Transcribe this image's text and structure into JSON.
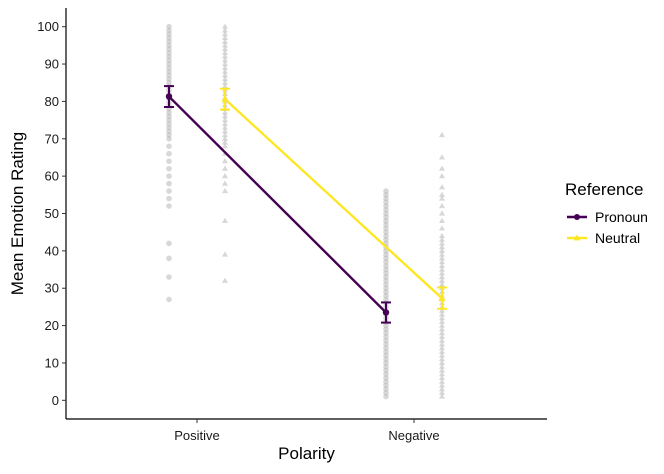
{
  "chart_data": {
    "type": "line",
    "title": "",
    "xlabel": "Polarity",
    "ylabel": "Mean Emotion Rating",
    "categories": [
      "Positive",
      "Negative"
    ],
    "ylim": [
      -5,
      105
    ],
    "yticks": [
      0,
      10,
      20,
      30,
      40,
      50,
      60,
      70,
      80,
      90,
      100
    ],
    "grid": false,
    "legend": {
      "title": "Reference",
      "placement": "right"
    },
    "series": [
      {
        "name": "Pronoun",
        "color": "#440154",
        "marker": "circle",
        "means": [
          81.3,
          23.5
        ],
        "error_low": [
          78.5,
          20.8
        ],
        "error_high": [
          84.1,
          26.2
        ],
        "raw_points": [
          [
            100,
            99,
            98,
            97,
            96,
            95,
            94,
            93,
            92,
            91,
            90,
            89,
            88,
            87,
            86,
            85,
            84,
            83,
            82,
            81,
            80,
            79,
            78,
            77,
            76,
            75,
            74,
            73,
            72,
            71,
            70,
            68,
            66,
            64,
            62,
            60,
            58,
            56,
            54,
            52,
            42,
            38,
            33,
            27
          ],
          [
            56,
            55,
            54,
            53,
            52,
            51,
            50,
            49,
            48,
            47,
            46,
            45,
            44,
            43,
            42,
            41,
            40,
            39,
            38,
            37,
            36,
            35,
            34,
            33,
            32,
            31,
            30,
            29,
            28,
            27,
            26,
            25,
            24,
            23,
            22,
            21,
            20,
            19,
            18,
            17,
            16,
            15,
            14,
            13,
            12,
            11,
            10,
            9,
            8,
            7,
            6,
            5,
            4,
            3,
            2,
            1
          ]
        ]
      },
      {
        "name": "Neutral",
        "color": "#fde725",
        "marker": "triangle",
        "means": [
          80.6,
          27.3
        ],
        "error_low": [
          77.8,
          24.5
        ],
        "error_high": [
          83.4,
          30.2
        ],
        "raw_points": [
          [
            100,
            99,
            98,
            97,
            96,
            95,
            94,
            93,
            92,
            91,
            90,
            89,
            88,
            87,
            86,
            85,
            84,
            83,
            82,
            81,
            80,
            79,
            78,
            77,
            76,
            75,
            74,
            73,
            72,
            71,
            70,
            69,
            68,
            66,
            64,
            62,
            60,
            58,
            56,
            48,
            39,
            32
          ],
          [
            71,
            65,
            62,
            60,
            57,
            55,
            54,
            52,
            50,
            48,
            46,
            44,
            43,
            42,
            41,
            40,
            39,
            38,
            37,
            36,
            35,
            34,
            33,
            32,
            31,
            30,
            29,
            28,
            27,
            26,
            25,
            24,
            23,
            22,
            21,
            20,
            19,
            18,
            17,
            16,
            15,
            14,
            13,
            12,
            11,
            10,
            9,
            8,
            7,
            6,
            5,
            4,
            3,
            2,
            1
          ]
        ]
      }
    ]
  }
}
